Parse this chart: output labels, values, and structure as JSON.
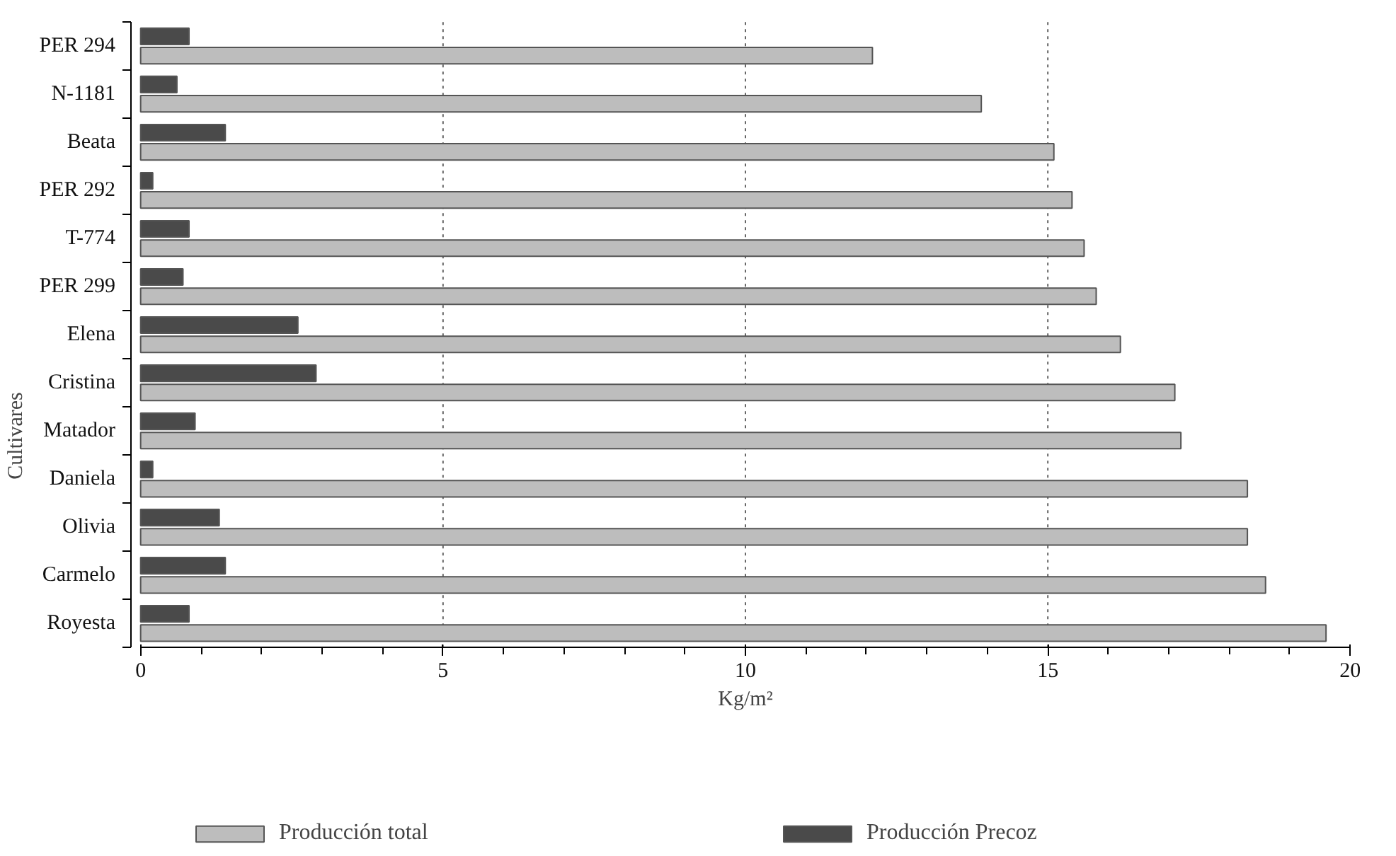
{
  "chart_data": {
    "type": "bar",
    "orientation": "horizontal",
    "xlabel": "Kg/m²",
    "ylabel": "Cultivares",
    "categories": [
      "PER 294",
      "N-1181",
      "Beata",
      "PER 292",
      "T-774",
      "PER 299",
      "Elena",
      "Cristina",
      "Matador",
      "Daniela",
      "Olivia",
      "Carmelo",
      "Royesta"
    ],
    "series": [
      {
        "name": "Producción total",
        "color": "#bdbdbd",
        "values": [
          12.1,
          13.9,
          15.1,
          15.4,
          15.6,
          15.8,
          16.2,
          17.1,
          17.2,
          18.3,
          18.3,
          18.6,
          19.6
        ]
      },
      {
        "name": "Producción Precoz",
        "color": "#4a4a4a",
        "values": [
          0.8,
          0.6,
          1.4,
          0.2,
          0.8,
          0.7,
          2.6,
          2.9,
          0.9,
          0.2,
          1.3,
          1.4,
          0.8
        ]
      }
    ],
    "xlim": [
      0,
      20
    ],
    "xticks": [
      0,
      5,
      10,
      15,
      20
    ],
    "grid": "x",
    "legend": "bottom"
  }
}
